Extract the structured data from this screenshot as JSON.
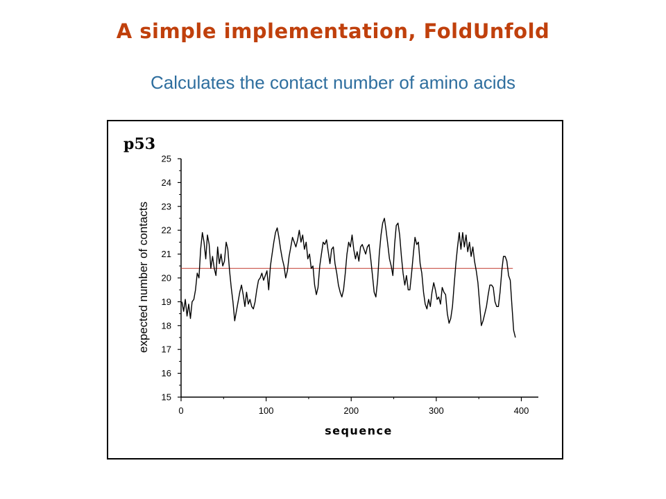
{
  "slide": {
    "title": "A simple implementation, FoldUnfold",
    "subtitle": "Calculates the contact number of amino acids",
    "title_color": "#c0400c",
    "subtitle_color": "#2e6e9e"
  },
  "chart_data": {
    "type": "line",
    "label": "p53",
    "xlabel": "sequence",
    "ylabel": "expected number of contacts",
    "xlim": [
      0,
      420
    ],
    "ylim": [
      15,
      25
    ],
    "x_ticks": [
      0,
      100,
      200,
      300,
      400
    ],
    "y_ticks": [
      15,
      16,
      17,
      18,
      19,
      20,
      21,
      22,
      23,
      24,
      25
    ],
    "grid": false,
    "line_color": "#000000",
    "threshold": {
      "value": 20.4,
      "x_range": [
        0,
        390
      ],
      "color": "#c0392b"
    },
    "series": [
      {
        "x": [
          1,
          3,
          5,
          7,
          9,
          11,
          13,
          15,
          17,
          19,
          21,
          23,
          25,
          27,
          29,
          31,
          33,
          35,
          37,
          39,
          41,
          43,
          45,
          47,
          49,
          51,
          53,
          55,
          57,
          59,
          61,
          63,
          65,
          67,
          69,
          71,
          73,
          75,
          77,
          79,
          81,
          83,
          85,
          87,
          89,
          91,
          93,
          95,
          97,
          99,
          101,
          103,
          105,
          107,
          109,
          111,
          113,
          115,
          117,
          119,
          121,
          123,
          125,
          127,
          129,
          131,
          133,
          135,
          137,
          139,
          141,
          143,
          145,
          147,
          149,
          151,
          153,
          155,
          157,
          159,
          161,
          163,
          165,
          167,
          169,
          171,
          173,
          175,
          177,
          179,
          181,
          183,
          185,
          187,
          189,
          191,
          193,
          195,
          197,
          199,
          201,
          203,
          205,
          207,
          209,
          211,
          213,
          215,
          217,
          219,
          221,
          223,
          225,
          227,
          229,
          231,
          233,
          235,
          237,
          239,
          241,
          243,
          245,
          247,
          249,
          251,
          253,
          255,
          257,
          259,
          261,
          263,
          265,
          267,
          269,
          271,
          273,
          275,
          277,
          279,
          281,
          283,
          285,
          287,
          289,
          291,
          293,
          295,
          297,
          299,
          301,
          303,
          305,
          307,
          309,
          311,
          313,
          315,
          317,
          319,
          321,
          323,
          325,
          327,
          329,
          331,
          333,
          335,
          337,
          339,
          341,
          343,
          345,
          347,
          349,
          351,
          353,
          355,
          357,
          359,
          361,
          363,
          365,
          367,
          369,
          371,
          373,
          375,
          377,
          379,
          381,
          383,
          385,
          387,
          389,
          391,
          393
        ],
        "y": [
          19.0,
          18.6,
          19.1,
          18.4,
          18.9,
          18.3,
          19.0,
          19.1,
          19.5,
          20.2,
          20.0,
          21.2,
          21.9,
          21.5,
          20.8,
          21.8,
          21.4,
          20.4,
          20.9,
          20.4,
          20.1,
          21.3,
          20.6,
          21.0,
          20.5,
          20.7,
          21.5,
          21.2,
          20.3,
          19.6,
          19.0,
          18.2,
          18.6,
          19.0,
          19.4,
          19.7,
          19.3,
          18.8,
          19.4,
          18.9,
          19.1,
          18.8,
          18.7,
          19.0,
          19.5,
          19.9,
          20.0,
          20.2,
          19.9,
          20.1,
          20.3,
          19.5,
          20.5,
          21.0,
          21.5,
          21.9,
          22.1,
          21.7,
          21.2,
          20.8,
          20.5,
          20.0,
          20.3,
          20.9,
          21.3,
          21.7,
          21.5,
          21.3,
          21.6,
          22.0,
          21.5,
          21.8,
          21.2,
          21.5,
          20.8,
          21.0,
          20.4,
          20.5,
          19.7,
          19.3,
          19.6,
          20.5,
          21.0,
          21.5,
          21.4,
          21.6,
          21.1,
          20.6,
          21.2,
          21.3,
          20.6,
          20.2,
          19.7,
          19.4,
          19.2,
          19.5,
          20.2,
          21.0,
          21.5,
          21.3,
          21.8,
          21.2,
          20.8,
          21.1,
          20.7,
          21.3,
          21.4,
          21.2,
          21.0,
          21.3,
          21.4,
          20.8,
          20.1,
          19.4,
          19.2,
          19.9,
          21.0,
          21.8,
          22.3,
          22.5,
          22.0,
          21.4,
          20.8,
          20.5,
          20.1,
          21.4,
          22.2,
          22.3,
          21.8,
          20.9,
          20.2,
          19.7,
          20.1,
          19.5,
          19.5,
          20.2,
          21.0,
          21.7,
          21.4,
          21.5,
          20.6,
          20.2,
          19.4,
          18.9,
          18.7,
          19.1,
          18.8,
          19.4,
          19.8,
          19.5,
          19.1,
          19.2,
          18.9,
          19.6,
          19.4,
          19.3,
          18.5,
          18.1,
          18.3,
          18.8,
          19.7,
          20.6,
          21.3,
          21.9,
          21.2,
          21.9,
          21.3,
          21.8,
          21.1,
          21.5,
          20.9,
          21.3,
          20.7,
          20.3,
          19.8,
          18.9,
          18.0,
          18.2,
          18.5,
          18.8,
          19.3,
          19.7,
          19.7,
          19.6,
          19.0,
          18.8,
          18.8,
          19.4,
          20.3,
          20.9,
          20.9,
          20.7,
          20.1,
          19.9,
          18.8,
          17.8,
          17.5
        ]
      }
    ]
  }
}
